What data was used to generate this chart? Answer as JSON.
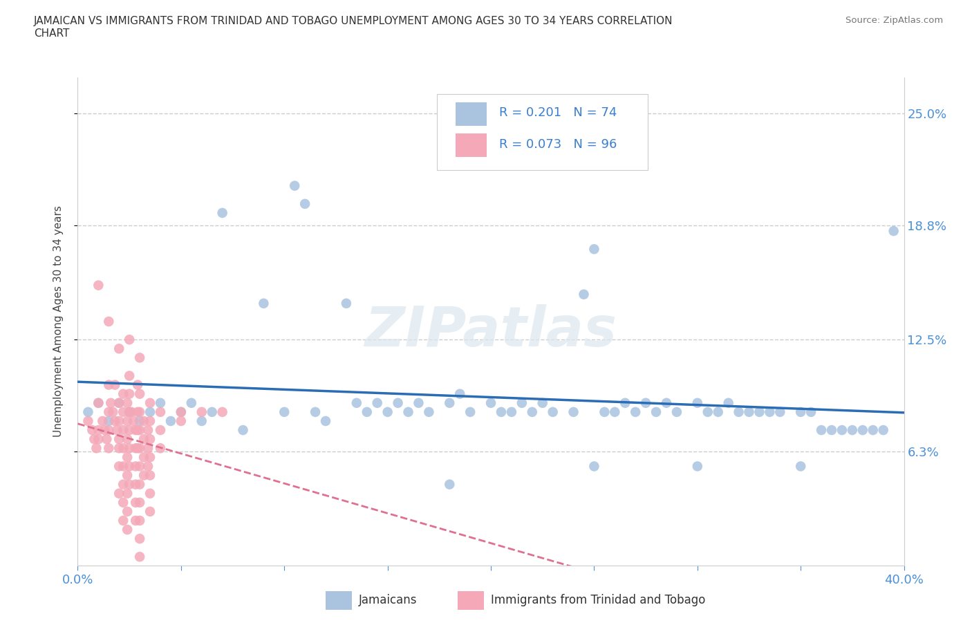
{
  "title": "JAMAICAN VS IMMIGRANTS FROM TRINIDAD AND TOBAGO UNEMPLOYMENT AMONG AGES 30 TO 34 YEARS CORRELATION\nCHART",
  "source": "Source: ZipAtlas.com",
  "ylabel": "Unemployment Among Ages 30 to 34 years",
  "xlim": [
    0.0,
    0.4
  ],
  "ylim": [
    0.0,
    0.27
  ],
  "xticks": [
    0.0,
    0.05,
    0.1,
    0.15,
    0.2,
    0.25,
    0.3,
    0.35,
    0.4
  ],
  "xtick_labels": [
    "0.0%",
    "",
    "",
    "",
    "",
    "",
    "",
    "",
    "40.0%"
  ],
  "ytick_labels_right": [
    "6.3%",
    "12.5%",
    "18.8%",
    "25.0%"
  ],
  "ytick_vals_right": [
    0.063,
    0.125,
    0.188,
    0.25
  ],
  "blue_color": "#aac4e0",
  "pink_color": "#f4a8b8",
  "blue_line_color": "#2a6db5",
  "pink_line_color": "#e07090",
  "R_blue": 0.201,
  "N_blue": 74,
  "R_pink": 0.073,
  "N_pink": 96,
  "legend_label_blue": "Jamaicans",
  "legend_label_pink": "Immigrants from Trinidad and Tobago",
  "background_color": "#ffffff",
  "grid_color": "#cccccc",
  "blue_scatter": [
    [
      0.005,
      0.085
    ],
    [
      0.01,
      0.09
    ],
    [
      0.015,
      0.08
    ],
    [
      0.02,
      0.09
    ],
    [
      0.025,
      0.085
    ],
    [
      0.03,
      0.08
    ],
    [
      0.035,
      0.085
    ],
    [
      0.04,
      0.09
    ],
    [
      0.045,
      0.08
    ],
    [
      0.05,
      0.085
    ],
    [
      0.055,
      0.09
    ],
    [
      0.06,
      0.08
    ],
    [
      0.065,
      0.085
    ],
    [
      0.07,
      0.195
    ],
    [
      0.08,
      0.075
    ],
    [
      0.09,
      0.145
    ],
    [
      0.1,
      0.085
    ],
    [
      0.105,
      0.21
    ],
    [
      0.11,
      0.2
    ],
    [
      0.115,
      0.085
    ],
    [
      0.12,
      0.08
    ],
    [
      0.13,
      0.145
    ],
    [
      0.135,
      0.09
    ],
    [
      0.14,
      0.085
    ],
    [
      0.145,
      0.09
    ],
    [
      0.15,
      0.085
    ],
    [
      0.155,
      0.09
    ],
    [
      0.16,
      0.085
    ],
    [
      0.165,
      0.09
    ],
    [
      0.17,
      0.085
    ],
    [
      0.18,
      0.09
    ],
    [
      0.185,
      0.095
    ],
    [
      0.19,
      0.085
    ],
    [
      0.2,
      0.09
    ],
    [
      0.205,
      0.085
    ],
    [
      0.21,
      0.085
    ],
    [
      0.215,
      0.09
    ],
    [
      0.22,
      0.085
    ],
    [
      0.225,
      0.09
    ],
    [
      0.23,
      0.085
    ],
    [
      0.24,
      0.085
    ],
    [
      0.245,
      0.15
    ],
    [
      0.25,
      0.175
    ],
    [
      0.255,
      0.085
    ],
    [
      0.26,
      0.085
    ],
    [
      0.265,
      0.09
    ],
    [
      0.27,
      0.085
    ],
    [
      0.275,
      0.09
    ],
    [
      0.28,
      0.085
    ],
    [
      0.285,
      0.09
    ],
    [
      0.29,
      0.085
    ],
    [
      0.3,
      0.09
    ],
    [
      0.305,
      0.085
    ],
    [
      0.31,
      0.085
    ],
    [
      0.315,
      0.09
    ],
    [
      0.32,
      0.085
    ],
    [
      0.325,
      0.085
    ],
    [
      0.33,
      0.085
    ],
    [
      0.335,
      0.085
    ],
    [
      0.34,
      0.085
    ],
    [
      0.35,
      0.085
    ],
    [
      0.355,
      0.085
    ],
    [
      0.36,
      0.075
    ],
    [
      0.365,
      0.075
    ],
    [
      0.37,
      0.075
    ],
    [
      0.375,
      0.075
    ],
    [
      0.38,
      0.075
    ],
    [
      0.385,
      0.075
    ],
    [
      0.39,
      0.075
    ],
    [
      0.395,
      0.185
    ],
    [
      0.18,
      0.045
    ],
    [
      0.25,
      0.055
    ],
    [
      0.3,
      0.055
    ],
    [
      0.35,
      0.055
    ]
  ],
  "pink_scatter": [
    [
      0.005,
      0.08
    ],
    [
      0.007,
      0.075
    ],
    [
      0.008,
      0.07
    ],
    [
      0.009,
      0.065
    ],
    [
      0.01,
      0.155
    ],
    [
      0.01,
      0.09
    ],
    [
      0.01,
      0.075
    ],
    [
      0.01,
      0.07
    ],
    [
      0.012,
      0.08
    ],
    [
      0.013,
      0.075
    ],
    [
      0.014,
      0.07
    ],
    [
      0.015,
      0.135
    ],
    [
      0.015,
      0.1
    ],
    [
      0.015,
      0.085
    ],
    [
      0.015,
      0.075
    ],
    [
      0.015,
      0.065
    ],
    [
      0.016,
      0.09
    ],
    [
      0.017,
      0.085
    ],
    [
      0.018,
      0.08
    ],
    [
      0.018,
      0.1
    ],
    [
      0.019,
      0.075
    ],
    [
      0.02,
      0.12
    ],
    [
      0.02,
      0.09
    ],
    [
      0.02,
      0.08
    ],
    [
      0.02,
      0.07
    ],
    [
      0.02,
      0.065
    ],
    [
      0.02,
      0.055
    ],
    [
      0.02,
      0.04
    ],
    [
      0.022,
      0.095
    ],
    [
      0.022,
      0.085
    ],
    [
      0.022,
      0.075
    ],
    [
      0.022,
      0.065
    ],
    [
      0.022,
      0.055
    ],
    [
      0.022,
      0.045
    ],
    [
      0.022,
      0.035
    ],
    [
      0.022,
      0.025
    ],
    [
      0.024,
      0.09
    ],
    [
      0.024,
      0.08
    ],
    [
      0.024,
      0.07
    ],
    [
      0.024,
      0.06
    ],
    [
      0.024,
      0.05
    ],
    [
      0.024,
      0.04
    ],
    [
      0.024,
      0.03
    ],
    [
      0.024,
      0.02
    ],
    [
      0.025,
      0.125
    ],
    [
      0.025,
      0.105
    ],
    [
      0.025,
      0.095
    ],
    [
      0.025,
      0.085
    ],
    [
      0.025,
      0.075
    ],
    [
      0.025,
      0.065
    ],
    [
      0.025,
      0.055
    ],
    [
      0.025,
      0.045
    ],
    [
      0.026,
      0.085
    ],
    [
      0.027,
      0.08
    ],
    [
      0.028,
      0.075
    ],
    [
      0.028,
      0.065
    ],
    [
      0.028,
      0.055
    ],
    [
      0.028,
      0.045
    ],
    [
      0.028,
      0.035
    ],
    [
      0.028,
      0.025
    ],
    [
      0.029,
      0.1
    ],
    [
      0.029,
      0.085
    ],
    [
      0.029,
      0.075
    ],
    [
      0.029,
      0.065
    ],
    [
      0.03,
      0.115
    ],
    [
      0.03,
      0.095
    ],
    [
      0.03,
      0.085
    ],
    [
      0.03,
      0.075
    ],
    [
      0.03,
      0.065
    ],
    [
      0.03,
      0.055
    ],
    [
      0.03,
      0.045
    ],
    [
      0.03,
      0.035
    ],
    [
      0.03,
      0.025
    ],
    [
      0.03,
      0.015
    ],
    [
      0.03,
      0.005
    ],
    [
      0.032,
      0.08
    ],
    [
      0.032,
      0.07
    ],
    [
      0.032,
      0.06
    ],
    [
      0.032,
      0.05
    ],
    [
      0.034,
      0.075
    ],
    [
      0.034,
      0.065
    ],
    [
      0.034,
      0.055
    ],
    [
      0.035,
      0.09
    ],
    [
      0.035,
      0.08
    ],
    [
      0.035,
      0.07
    ],
    [
      0.035,
      0.06
    ],
    [
      0.035,
      0.05
    ],
    [
      0.035,
      0.04
    ],
    [
      0.035,
      0.03
    ],
    [
      0.04,
      0.085
    ],
    [
      0.04,
      0.075
    ],
    [
      0.04,
      0.065
    ],
    [
      0.05,
      0.085
    ],
    [
      0.05,
      0.08
    ],
    [
      0.06,
      0.085
    ],
    [
      0.07,
      0.085
    ]
  ]
}
